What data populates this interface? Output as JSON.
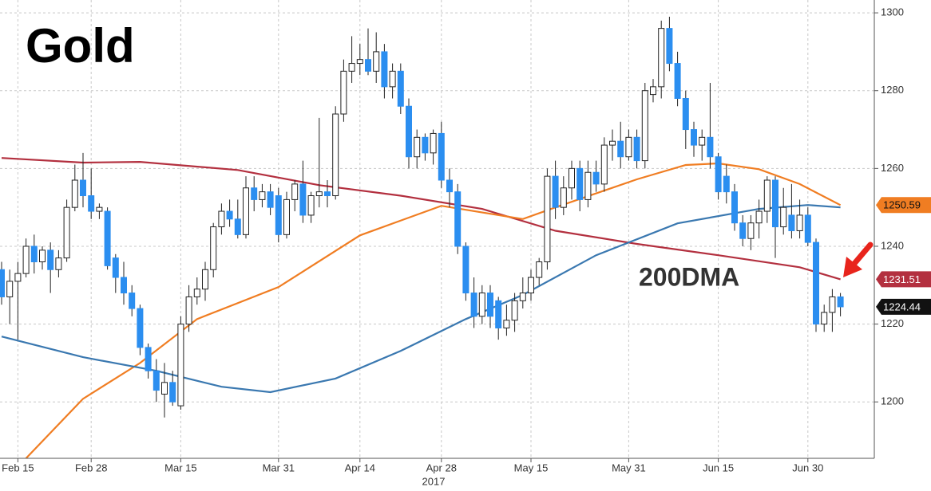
{
  "chart_data": {
    "type": "candlestick",
    "title": "Gold",
    "xlabel": "2017",
    "x": [
      "2017-02-13",
      "2017-02-14",
      "2017-02-15",
      "2017-02-16",
      "2017-02-17",
      "2017-02-20",
      "2017-02-21",
      "2017-02-22",
      "2017-02-23",
      "2017-02-24",
      "2017-02-27",
      "2017-02-28",
      "2017-03-01",
      "2017-03-02",
      "2017-03-03",
      "2017-03-06",
      "2017-03-07",
      "2017-03-08",
      "2017-03-09",
      "2017-03-10",
      "2017-03-13",
      "2017-03-14",
      "2017-03-15",
      "2017-03-16",
      "2017-03-17",
      "2017-03-20",
      "2017-03-21",
      "2017-03-22",
      "2017-03-23",
      "2017-03-24",
      "2017-03-27",
      "2017-03-28",
      "2017-03-29",
      "2017-03-30",
      "2017-03-31",
      "2017-04-03",
      "2017-04-04",
      "2017-04-05",
      "2017-04-06",
      "2017-04-07",
      "2017-04-10",
      "2017-04-11",
      "2017-04-12",
      "2017-04-13",
      "2017-04-14",
      "2017-04-17",
      "2017-04-18",
      "2017-04-19",
      "2017-04-20",
      "2017-04-21",
      "2017-04-24",
      "2017-04-25",
      "2017-04-26",
      "2017-04-27",
      "2017-04-28",
      "2017-05-01",
      "2017-05-02",
      "2017-05-03",
      "2017-05-04",
      "2017-05-05",
      "2017-05-08",
      "2017-05-09",
      "2017-05-10",
      "2017-05-11",
      "2017-05-12",
      "2017-05-15",
      "2017-05-16",
      "2017-05-17",
      "2017-05-18",
      "2017-05-19",
      "2017-05-22",
      "2017-05-23",
      "2017-05-24",
      "2017-05-25",
      "2017-05-26",
      "2017-05-29",
      "2017-05-30",
      "2017-05-31",
      "2017-06-01",
      "2017-06-02",
      "2017-06-05",
      "2017-06-06",
      "2017-06-07",
      "2017-06-08",
      "2017-06-09",
      "2017-06-12",
      "2017-06-13",
      "2017-06-14",
      "2017-06-15",
      "2017-06-16",
      "2017-06-19",
      "2017-06-20",
      "2017-06-21",
      "2017-06-22",
      "2017-06-23",
      "2017-06-26",
      "2017-06-27",
      "2017-06-28",
      "2017-06-29",
      "2017-06-30",
      "2017-07-03",
      "2017-07-04",
      "2017-07-05",
      "2017-07-06"
    ],
    "open": [
      1234,
      1227,
      1231,
      1233,
      1240,
      1236,
      1239,
      1234,
      1237,
      1250,
      1257,
      1253,
      1249,
      1249,
      1237,
      1232,
      1228,
      1224,
      1214,
      1208,
      1202,
      1205,
      1199,
      1220,
      1227,
      1229,
      1234,
      1245,
      1249,
      1247,
      1243,
      1255,
      1252,
      1254,
      1253,
      1243,
      1252,
      1256,
      1248,
      1253,
      1254,
      1253,
      1274,
      1285,
      1287,
      1288,
      1285,
      1290,
      1281,
      1285,
      1276,
      1263,
      1268,
      1264,
      1269,
      1257,
      1254,
      1240,
      1228,
      1222,
      1228,
      1226,
      1219,
      1221,
      1226,
      1228,
      1232,
      1236,
      1258,
      1250,
      1255,
      1260,
      1252,
      1259,
      1256,
      1266,
      1267,
      1263,
      1268,
      1262,
      1279,
      1281,
      1296,
      1287,
      1278,
      1270,
      1266,
      1268,
      1263,
      1258,
      1254,
      1246,
      1242,
      1246,
      1249,
      1257,
      1245,
      1248,
      1244,
      1248,
      1241,
      1220,
      1223,
      1227
    ],
    "high": [
      1236,
      1234,
      1236,
      1242,
      1243,
      1240,
      1241,
      1239,
      1252,
      1261,
      1264,
      1260,
      1251,
      1250,
      1238,
      1236,
      1230,
      1225,
      1215,
      1211,
      1210,
      1208,
      1222,
      1230,
      1232,
      1236,
      1246,
      1251,
      1252,
      1252,
      1258,
      1258,
      1256,
      1256,
      1255,
      1254,
      1257,
      1262,
      1254,
      1273,
      1257,
      1276,
      1288,
      1294,
      1292,
      1296,
      1295,
      1292,
      1287,
      1287,
      1278,
      1270,
      1269,
      1270,
      1272,
      1260,
      1256,
      1241,
      1232,
      1230,
      1230,
      1227,
      1225,
      1228,
      1232,
      1234,
      1237,
      1260,
      1262,
      1258,
      1262,
      1262,
      1262,
      1262,
      1268,
      1270,
      1272,
      1270,
      1270,
      1282,
      1283,
      1298,
      1299,
      1290,
      1280,
      1272,
      1270,
      1282,
      1264,
      1261,
      1256,
      1248,
      1248,
      1252,
      1258,
      1258,
      1255,
      1256,
      1252,
      1250,
      1242,
      1225,
      1229,
      1228
    ],
    "low": [
      1225,
      1220,
      1216,
      1232,
      1233,
      1234,
      1228,
      1232,
      1236,
      1249,
      1250,
      1247,
      1247,
      1234,
      1228,
      1225,
      1222,
      1212,
      1206,
      1200,
      1196,
      1199,
      1198,
      1218,
      1225,
      1226,
      1232,
      1243,
      1245,
      1242,
      1242,
      1249,
      1250,
      1248,
      1241,
      1242,
      1249,
      1246,
      1246,
      1250,
      1250,
      1252,
      1272,
      1282,
      1284,
      1284,
      1282,
      1278,
      1278,
      1274,
      1260,
      1260,
      1262,
      1261,
      1255,
      1250,
      1238,
      1226,
      1219,
      1220,
      1219,
      1216,
      1217,
      1218,
      1224,
      1226,
      1230,
      1234,
      1247,
      1248,
      1252,
      1249,
      1250,
      1254,
      1254,
      1262,
      1260,
      1262,
      1260,
      1260,
      1277,
      1278,
      1285,
      1276,
      1265,
      1263,
      1262,
      1260,
      1252,
      1251,
      1244,
      1240,
      1239,
      1242,
      1246,
      1237,
      1243,
      1242,
      1242,
      1240,
      1218,
      1218,
      1218,
      1222
    ],
    "close": [
      1227,
      1231,
      1233,
      1240,
      1236,
      1239,
      1234,
      1237,
      1250,
      1257,
      1253,
      1249,
      1250,
      1235,
      1232,
      1228,
      1224,
      1214,
      1208,
      1203,
      1205,
      1200,
      1220,
      1227,
      1229,
      1234,
      1245,
      1249,
      1247,
      1243,
      1255,
      1252,
      1254,
      1250,
      1243,
      1252,
      1256,
      1248,
      1253,
      1254,
      1253,
      1274,
      1285,
      1287,
      1288,
      1285,
      1290,
      1281,
      1285,
      1276,
      1263,
      1268,
      1264,
      1269,
      1257,
      1254,
      1240,
      1228,
      1222,
      1228,
      1222,
      1219,
      1221,
      1226,
      1228,
      1232,
      1236,
      1258,
      1250,
      1255,
      1260,
      1252,
      1259,
      1256,
      1266,
      1267,
      1263,
      1268,
      1262,
      1280,
      1281,
      1296,
      1287,
      1278,
      1270,
      1266,
      1268,
      1263,
      1254,
      1254,
      1246,
      1242,
      1246,
      1249,
      1257,
      1245,
      1250,
      1244,
      1248,
      1241,
      1220,
      1223,
      1227,
      1224.44
    ],
    "up_color": "#ffffff",
    "down_color": "#2b8ef0",
    "wick_color": "#222222",
    "overlays": [
      {
        "color": "#b3303f",
        "label_last": true,
        "x": [
          "2017-02-13",
          "2017-02-27",
          "2017-03-08",
          "2017-03-24",
          "2017-04-07",
          "2017-04-21",
          "2017-05-05",
          "2017-05-18",
          "2017-06-01",
          "2017-06-15",
          "2017-06-29",
          "2017-07-06"
        ],
        "values": [
          1262.7,
          1261.5,
          1261.7,
          1259.6,
          1255.7,
          1253,
          1249.6,
          1244,
          1240.6,
          1237.7,
          1234.6,
          1231.51
        ]
      },
      {
        "color": "#f07d22",
        "label_last": true,
        "x": [
          "2017-02-16",
          "2017-02-27",
          "2017-03-08",
          "2017-03-17",
          "2017-03-31",
          "2017-04-14",
          "2017-04-28",
          "2017-05-12",
          "2017-05-18",
          "2017-06-01",
          "2017-06-09",
          "2017-06-15",
          "2017-06-22",
          "2017-06-29",
          "2017-07-06"
        ],
        "values": [
          1185.5,
          1200.8,
          1210,
          1221.3,
          1229.5,
          1242.8,
          1250.4,
          1247,
          1250,
          1257.2,
          1260.9,
          1261.3,
          1259.8,
          1256,
          1250.59
        ]
      },
      {
        "color": "#3a78b0",
        "label_last": false,
        "x": [
          "2017-02-13",
          "2017-02-27",
          "2017-03-10",
          "2017-03-22",
          "2017-03-30",
          "2017-04-11",
          "2017-04-21",
          "2017-05-03",
          "2017-05-12",
          "2017-05-25",
          "2017-06-08",
          "2017-06-22",
          "2017-06-30",
          "2017-07-06"
        ],
        "values": [
          1216.8,
          1211.5,
          1208,
          1203.9,
          1202.5,
          1206,
          1213.1,
          1221.3,
          1227.5,
          1237.7,
          1245.9,
          1249.6,
          1250.6,
          1250
        ]
      }
    ],
    "annotations": [
      {
        "text": "200DMA",
        "color": "#a31f24"
      }
    ],
    "ylim": [
      1185.5,
      1303.3
    ],
    "yticks": [
      1200,
      1220,
      1240,
      1260,
      1280,
      1300
    ],
    "xticks": [
      {
        "value": "2017-02-15",
        "label": "Feb 15"
      },
      {
        "value": "2017-02-28",
        "label": "Feb 28"
      },
      {
        "value": "2017-03-15",
        "label": "Mar 15"
      },
      {
        "value": "2017-03-31",
        "label": "Mar 31"
      },
      {
        "value": "2017-04-14",
        "label": "Apr 14"
      },
      {
        "value": "2017-04-28",
        "label": "Apr 28"
      },
      {
        "value": "2017-05-15",
        "label": "May 15"
      },
      {
        "value": "2017-05-31",
        "label": "May 31"
      },
      {
        "value": "2017-06-15",
        "label": "Jun 15"
      },
      {
        "value": "2017-06-30",
        "label": "Jun 30"
      }
    ],
    "grid": true
  }
}
